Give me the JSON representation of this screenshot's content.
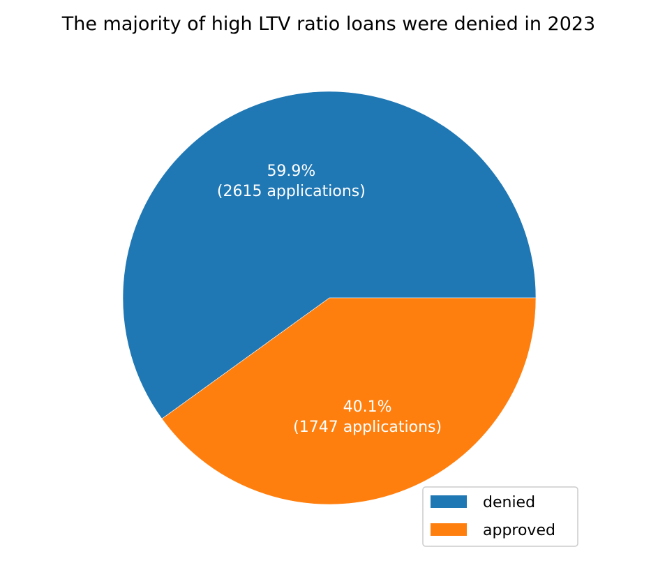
{
  "chart_data": {
    "type": "pie",
    "title": "The majority of high LTV ratio loans were denied in 2023",
    "slices": [
      {
        "name": "denied",
        "value": 2615,
        "percent_label": "59.9%",
        "count_label": "(2615 applications)",
        "color": "#1f77b4"
      },
      {
        "name": "approved",
        "value": 1747,
        "percent_label": "40.1%",
        "count_label": "(1747 applications)",
        "color": "#ff7f0e"
      }
    ],
    "start_angle_deg": 0,
    "direction": "counterclockwise",
    "legend": {
      "entries": [
        "denied",
        "approved"
      ],
      "placement": "lower-right"
    }
  }
}
